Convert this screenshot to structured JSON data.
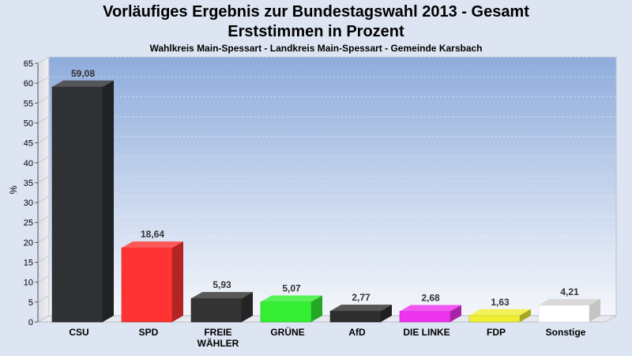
{
  "title_line1": "Vorläufiges Ergebnis zur Bundestagswahl 2013 - Gesamt",
  "title_line2": "Erststimmen in Prozent",
  "subtitle": "Wahlkreis Main-Spessart - Landkreis Main-Spessart - Gemeinde Karsbach",
  "chart_data": {
    "type": "bar",
    "title": "Vorläufiges Ergebnis zur Bundestagswahl 2013 - Gesamt",
    "subtitle": "Erststimmen in Prozent",
    "ylabel": "%",
    "ylim": [
      0,
      65
    ],
    "ytick_step": 5,
    "grid": true,
    "categories": [
      [
        "CSU"
      ],
      [
        "SPD"
      ],
      [
        "FREIE",
        "WÄHLER"
      ],
      [
        "GRÜNE"
      ],
      [
        "AfD"
      ],
      [
        "DIE LINKE"
      ],
      [
        "FDP"
      ],
      [
        "Sonstige"
      ]
    ],
    "values": [
      59.08,
      18.64,
      5.93,
      5.07,
      2.77,
      2.68,
      1.63,
      4.21
    ],
    "value_labels": [
      "59,08",
      "18,64",
      "5,93",
      "5,07",
      "2,77",
      "2,68",
      "1,63",
      "4,21"
    ],
    "colors": [
      "#2f3135",
      "#ff3333",
      "#333333",
      "#33ee33",
      "#2e2e2e",
      "#ee33ee",
      "#eeee33",
      "#ffffff"
    ]
  }
}
